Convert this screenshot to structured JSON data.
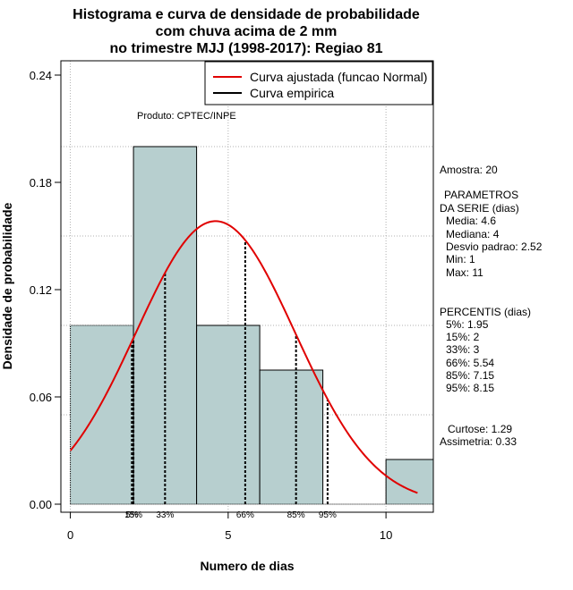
{
  "chart_data": {
    "type": "histogram",
    "title": [
      "Histograma e curva de densidade de probabilidade",
      "com chuva acima de 2 mm",
      "no trimestre MJJ (1998-2017): Regiao 81"
    ],
    "xlabel": "Numero de dias",
    "ylabel": "Densidade de probabilidade",
    "xlim": [
      -0.3,
      11.5
    ],
    "ylim": [
      -0.0045,
      0.248
    ],
    "xticks": [
      0,
      5,
      10
    ],
    "yticks": [
      0.0,
      0.06,
      0.12,
      0.18,
      0.24
    ],
    "ytick_labels": [
      "0.00",
      "0.06",
      "0.12",
      "0.18",
      "0.24"
    ],
    "grid_x": [
      0,
      5,
      10
    ],
    "grid_y": [
      0.05,
      0.1,
      0.15,
      0.2
    ],
    "bins": [
      {
        "from": 0,
        "to": 2,
        "density": 0.1
      },
      {
        "from": 2,
        "to": 4,
        "density": 0.2
      },
      {
        "from": 4,
        "to": 6,
        "density": 0.1
      },
      {
        "from": 6,
        "to": 8,
        "density": 0.075
      },
      {
        "from": 8,
        "to": 10,
        "density": 0.0
      },
      {
        "from": 10,
        "to": 12,
        "density": 0.025
      }
    ],
    "bar_color": "#b7cfcf",
    "curve_color": "#e00000",
    "normal_fit": {
      "mean": 4.6,
      "sd": 2.52,
      "x_range": [
        0,
        11
      ]
    },
    "percentile_lines": [
      {
        "label": "5%",
        "x": 1.95
      },
      {
        "label": "15%",
        "x": 2
      },
      {
        "label": "33%",
        "x": 3
      },
      {
        "label": "66%",
        "x": 5.54
      },
      {
        "label": "85%",
        "x": 7.15
      },
      {
        "label": "95%",
        "x": 8.15
      }
    ],
    "legend": {
      "position": "top-right",
      "entries": [
        {
          "label": "Curva ajustada (funcao Normal)",
          "color": "#e00000"
        },
        {
          "label": "Curva empirica",
          "color": "#000000"
        }
      ]
    },
    "annotation": "Produto: CPTEC/INPE"
  },
  "stats_panel": {
    "sample": "Amostra: 20",
    "params_title_1": "PARAMETROS",
    "params_title_2": "DA SERIE (dias)",
    "params": [
      "Media: 4.6",
      "Mediana: 4",
      "Desvio padrao: 2.52",
      "Min: 1",
      "Max: 11"
    ],
    "percentiles_title": "PERCENTIS (dias)",
    "percentiles": [
      "5%: 1.95",
      "15%: 2",
      "33%: 3",
      "66%: 5.54",
      "85%: 7.15",
      "95%: 8.15"
    ],
    "kurtosis": "Curtose: 1.29",
    "skewness": "Assimetria: 0.33"
  }
}
